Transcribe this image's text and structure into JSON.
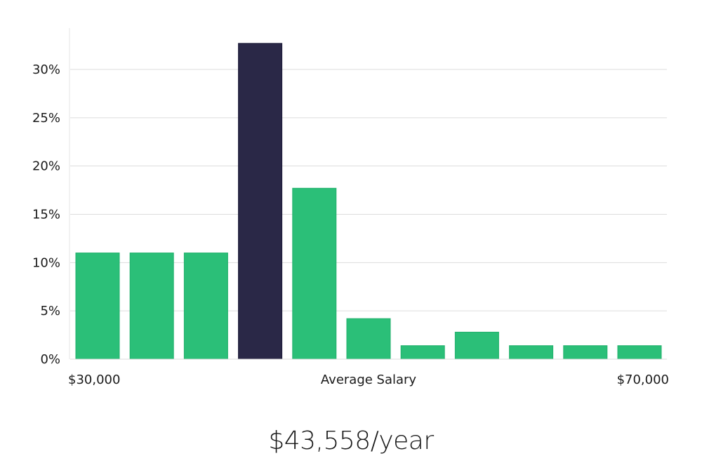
{
  "chart_data": {
    "type": "bar",
    "title": "",
    "xlabel": "Average Salary",
    "ylabel": "",
    "ylim": [
      0,
      33
    ],
    "y_ticks": [
      0,
      5,
      10,
      15,
      20,
      25,
      30
    ],
    "y_tick_format": "percent",
    "x_range_labels": {
      "min": "$30,000",
      "center": "Average Salary",
      "max": "$70,000"
    },
    "values": [
      11.0,
      11.0,
      11.0,
      32.7,
      17.7,
      4.2,
      1.4,
      2.8,
      1.4,
      1.4,
      1.4
    ],
    "highlight_index": 3,
    "grid": true,
    "colors": {
      "bar": "#2bbf78",
      "bar_border": "#22b06c",
      "highlight": "#2a2847",
      "highlight_border": "#1a1836",
      "grid": "#dddddd",
      "axis": "#e6e6e6"
    }
  },
  "salary": {
    "readout": "$43,558/year"
  }
}
